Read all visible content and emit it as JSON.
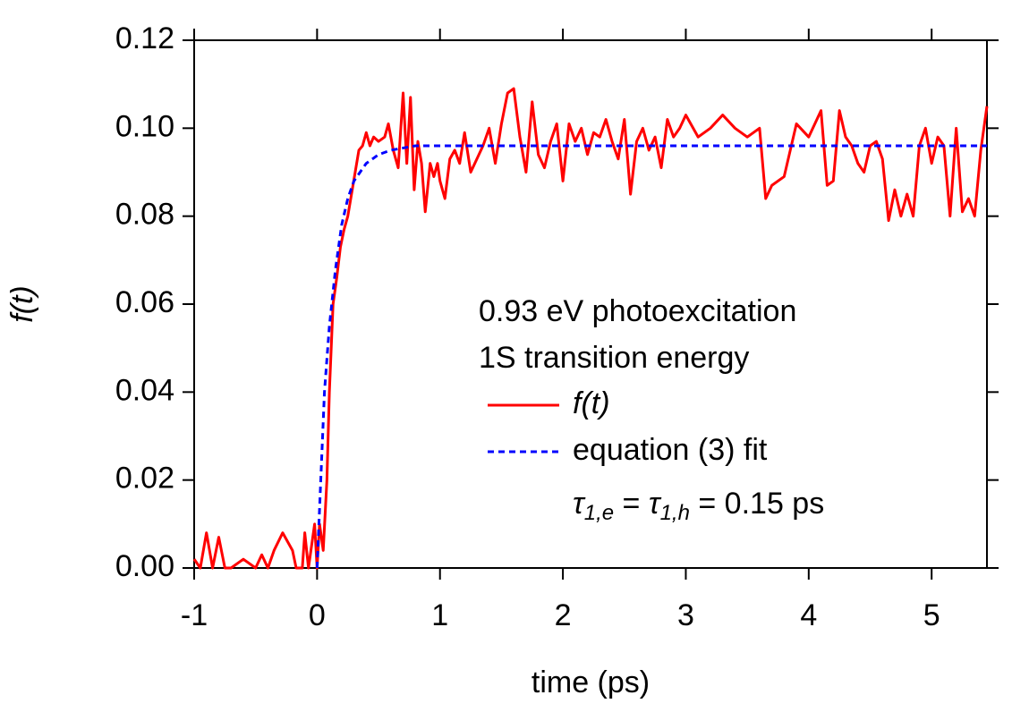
{
  "chart_data": {
    "type": "line",
    "xlabel": "time (ps)",
    "ylabel": "f(t)",
    "xlim": [
      -1,
      5.45
    ],
    "ylim": [
      0,
      0.12
    ],
    "xticks": [
      -1,
      0,
      1,
      2,
      3,
      4,
      5
    ],
    "yticks": [
      {
        "value": 0,
        "label": "0.00"
      },
      0.02,
      0.04,
      0.06,
      0.08,
      {
        "value": 0.1,
        "label": "0.10"
      },
      0.12
    ],
    "annotations": [
      "0.93 eV photoexcitation",
      "1S transition energy"
    ],
    "fit_note": [
      "τ",
      "1,e",
      " = ",
      "τ",
      "1,h",
      " = 0.15 ps"
    ],
    "series": [
      {
        "name": "f(t)",
        "color": "#ff0000",
        "line_style": "solid",
        "x": [
          -1.0,
          -0.95,
          -0.9,
          -0.85,
          -0.8,
          -0.75,
          -0.7,
          -0.6,
          -0.5,
          -0.45,
          -0.4,
          -0.35,
          -0.28,
          -0.2,
          -0.17,
          -0.12,
          -0.1,
          -0.07,
          -0.02,
          0.0,
          0.02,
          0.05,
          0.08,
          0.1,
          0.13,
          0.16,
          0.19,
          0.22,
          0.25,
          0.28,
          0.31,
          0.34,
          0.37,
          0.4,
          0.43,
          0.46,
          0.5,
          0.55,
          0.58,
          0.62,
          0.66,
          0.7,
          0.73,
          0.76,
          0.79,
          0.82,
          0.85,
          0.88,
          0.92,
          0.95,
          0.98,
          1.0,
          1.04,
          1.08,
          1.12,
          1.16,
          1.2,
          1.25,
          1.3,
          1.35,
          1.4,
          1.45,
          1.5,
          1.55,
          1.6,
          1.65,
          1.7,
          1.75,
          1.8,
          1.85,
          1.9,
          1.95,
          2.0,
          2.05,
          2.1,
          2.15,
          2.2,
          2.25,
          2.3,
          2.35,
          2.4,
          2.45,
          2.5,
          2.55,
          2.6,
          2.65,
          2.7,
          2.75,
          2.8,
          2.85,
          2.9,
          2.95,
          3.0,
          3.1,
          3.2,
          3.3,
          3.4,
          3.5,
          3.6,
          3.65,
          3.7,
          3.8,
          3.9,
          4.0,
          4.1,
          4.15,
          4.2,
          4.25,
          4.3,
          4.35,
          4.4,
          4.45,
          4.5,
          4.55,
          4.6,
          4.65,
          4.7,
          4.75,
          4.8,
          4.85,
          4.9,
          4.95,
          5.0,
          5.05,
          5.1,
          5.15,
          5.2,
          5.25,
          5.3,
          5.35,
          5.4,
          5.45
        ],
        "values": [
          0.002,
          0.0,
          0.008,
          0.0,
          0.007,
          0.0,
          0.0,
          0.002,
          0.0,
          0.003,
          0.0,
          0.004,
          0.008,
          0.004,
          0.0,
          0.0,
          0.008,
          0.0,
          0.01,
          0.0,
          0.01,
          0.004,
          0.02,
          0.04,
          0.06,
          0.066,
          0.073,
          0.077,
          0.08,
          0.085,
          0.09,
          0.095,
          0.096,
          0.099,
          0.096,
          0.098,
          0.097,
          0.098,
          0.101,
          0.095,
          0.091,
          0.108,
          0.092,
          0.107,
          0.086,
          0.097,
          0.092,
          0.081,
          0.092,
          0.089,
          0.092,
          0.088,
          0.084,
          0.093,
          0.095,
          0.092,
          0.099,
          0.09,
          0.093,
          0.096,
          0.1,
          0.092,
          0.101,
          0.108,
          0.109,
          0.098,
          0.09,
          0.106,
          0.094,
          0.091,
          0.097,
          0.101,
          0.088,
          0.101,
          0.097,
          0.1,
          0.094,
          0.099,
          0.098,
          0.102,
          0.097,
          0.093,
          0.102,
          0.085,
          0.097,
          0.1,
          0.095,
          0.098,
          0.091,
          0.102,
          0.098,
          0.1,
          0.103,
          0.098,
          0.1,
          0.103,
          0.1,
          0.098,
          0.1,
          0.084,
          0.087,
          0.089,
          0.101,
          0.098,
          0.104,
          0.087,
          0.088,
          0.104,
          0.098,
          0.096,
          0.092,
          0.09,
          0.096,
          0.097,
          0.093,
          0.079,
          0.086,
          0.08,
          0.085,
          0.08,
          0.096,
          0.1,
          0.092,
          0.098,
          0.096,
          0.08,
          0.1,
          0.081,
          0.084,
          0.08,
          0.095,
          0.105
        ]
      },
      {
        "name": "equation (3) fit",
        "color": "#0000ff",
        "line_style": "dashed",
        "x": [
          0,
          0.03,
          0.06,
          0.1,
          0.15,
          0.2,
          0.25,
          0.3,
          0.4,
          0.5,
          0.6,
          0.8,
          5.45
        ],
        "values": [
          0,
          0.02,
          0.04,
          0.055,
          0.068,
          0.078,
          0.084,
          0.088,
          0.092,
          0.094,
          0.095,
          0.096,
          0.096
        ]
      }
    ]
  }
}
